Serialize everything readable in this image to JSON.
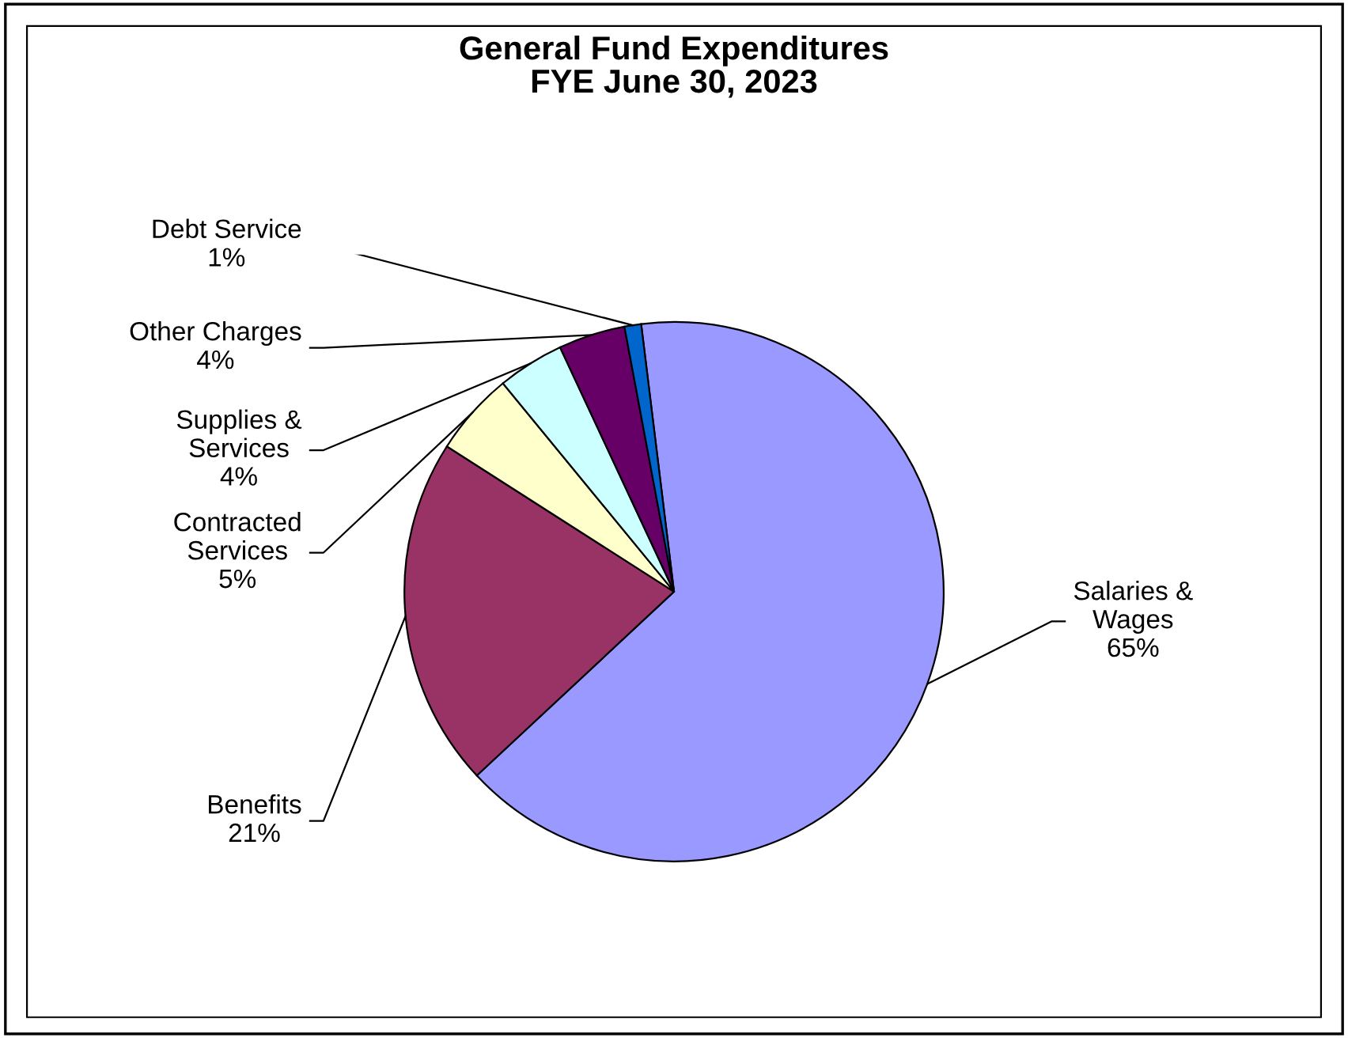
{
  "chart_data": {
    "type": "pie",
    "title": "General Fund Expenditures\nFYE June 30, 2023",
    "categories": [
      "Salaries &\nWages",
      "Benefits",
      "Contracted\nServices",
      "Supplies &\nServices",
      "Other Charges",
      "Debt Service"
    ],
    "values": [
      65,
      21,
      5,
      4,
      4,
      1
    ],
    "colors": [
      "#9999ff",
      "#993366",
      "#ffffcc",
      "#ccffff",
      "#660066",
      "#0066cc"
    ],
    "value_labels": [
      "65%",
      "21%",
      "5%",
      "4%",
      "4%",
      "1%"
    ]
  }
}
